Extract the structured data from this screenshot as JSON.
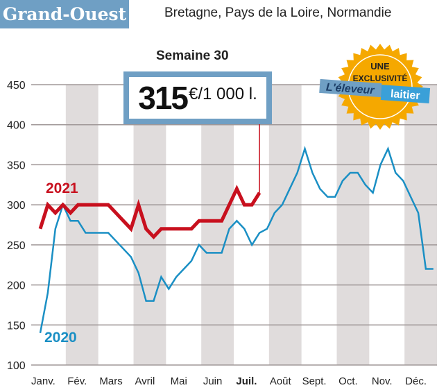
{
  "header": {
    "title": "Grand-Ouest",
    "subtitle": "Bretagne, Pays de la Loire, Normandie"
  },
  "highlight": {
    "week_label": "Semaine 30",
    "value": "315",
    "unit": "€/1 000 l."
  },
  "badge": {
    "line1": "UNE",
    "line2": "EXCLUSIVITÉ",
    "brand1": "L'éleveur",
    "brand2": "laitier",
    "color": "#f5a800"
  },
  "chart_data": {
    "type": "line",
    "ylim": [
      100,
      450
    ],
    "yticks": [
      100,
      150,
      200,
      250,
      300,
      350,
      400,
      450
    ],
    "grid": true,
    "xaxis_unit": "week",
    "months": [
      "Janv.",
      "Fév.",
      "Mars",
      "Avril",
      "Mai",
      "Juin",
      "Juil.",
      "Août",
      "Sept.",
      "Oct.",
      "Nov.",
      "Déc."
    ],
    "highlighted_month": "Juil.",
    "series": [
      {
        "name": "2020",
        "color": "#1a8fc4",
        "points": [
          [
            1,
            140
          ],
          [
            2,
            190
          ],
          [
            3,
            270
          ],
          [
            4,
            300
          ],
          [
            5,
            280
          ],
          [
            6,
            280
          ],
          [
            7,
            265
          ],
          [
            10,
            265
          ],
          [
            13,
            235
          ],
          [
            14,
            215
          ],
          [
            15,
            180
          ],
          [
            16,
            180
          ],
          [
            17,
            210
          ],
          [
            18,
            195
          ],
          [
            19,
            210
          ],
          [
            20,
            220
          ],
          [
            21,
            230
          ],
          [
            22,
            250
          ],
          [
            23,
            240
          ],
          [
            25,
            240
          ],
          [
            26,
            270
          ],
          [
            27,
            280
          ],
          [
            28,
            270
          ],
          [
            29,
            250
          ],
          [
            30,
            265
          ],
          [
            31,
            270
          ],
          [
            32,
            290
          ],
          [
            33,
            300
          ],
          [
            34,
            320
          ],
          [
            35,
            340
          ],
          [
            36,
            370
          ],
          [
            37,
            340
          ],
          [
            38,
            320
          ],
          [
            39,
            310
          ],
          [
            40,
            310
          ],
          [
            41,
            330
          ],
          [
            42,
            340
          ],
          [
            43,
            340
          ],
          [
            44,
            325
          ],
          [
            45,
            315
          ],
          [
            46,
            350
          ],
          [
            47,
            370
          ],
          [
            48,
            340
          ],
          [
            49,
            330
          ],
          [
            50,
            310
          ],
          [
            51,
            290
          ],
          [
            52,
            220
          ],
          [
            53,
            220
          ]
        ]
      },
      {
        "name": "2021",
        "color": "#c8101e",
        "points": [
          [
            1,
            270
          ],
          [
            2,
            300
          ],
          [
            3,
            290
          ],
          [
            4,
            300
          ],
          [
            5,
            290
          ],
          [
            6,
            300
          ],
          [
            7,
            300
          ],
          [
            8,
            300
          ],
          [
            9,
            300
          ],
          [
            10,
            300
          ],
          [
            11,
            290
          ],
          [
            12,
            280
          ],
          [
            13,
            270
          ],
          [
            14,
            300
          ],
          [
            15,
            270
          ],
          [
            16,
            260
          ],
          [
            17,
            270
          ],
          [
            18,
            270
          ],
          [
            19,
            270
          ],
          [
            20,
            270
          ],
          [
            21,
            270
          ],
          [
            22,
            280
          ],
          [
            23,
            280
          ],
          [
            24,
            280
          ],
          [
            25,
            280
          ],
          [
            26,
            300
          ],
          [
            27,
            320
          ],
          [
            28,
            300
          ],
          [
            29,
            300
          ],
          [
            30,
            315
          ]
        ]
      }
    ]
  }
}
